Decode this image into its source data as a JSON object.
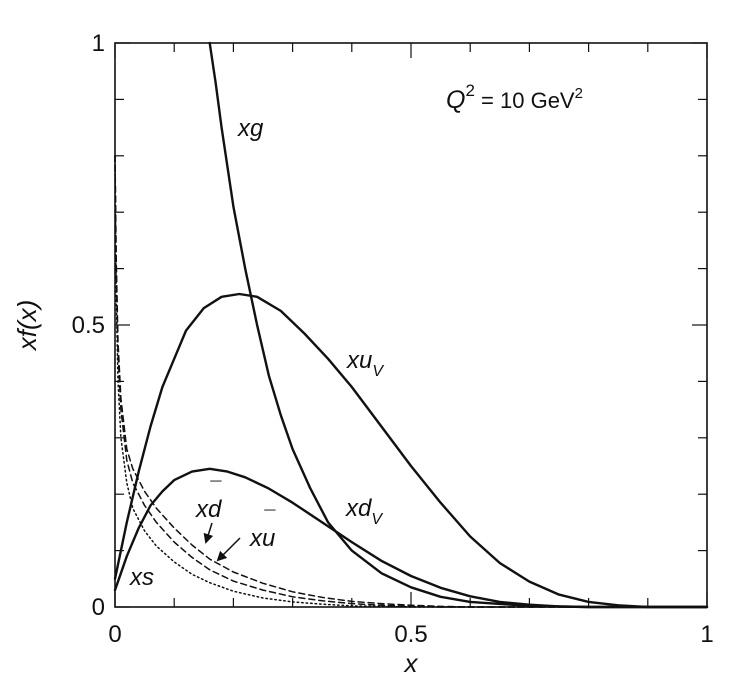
{
  "chart_data": {
    "type": "line",
    "title": "",
    "xlabel": "x",
    "ylabel": "xf(x)",
    "xlim": [
      0,
      1
    ],
    "ylim": [
      0,
      1
    ],
    "x_ticks": [
      "0",
      "0.5",
      "1"
    ],
    "y_ticks": [
      "0",
      "0.5",
      "1"
    ],
    "grid": false,
    "annotation": {
      "q_symbol": "Q",
      "q_exponent": "2",
      "q_text": " = 10 GeV",
      "unit_exponent": "2"
    },
    "series": [
      {
        "name": "xg",
        "label_base": "xg",
        "label_sub": "",
        "label_bar": "",
        "style": "solid",
        "points": [
          [
            0.16,
            1.0
          ],
          [
            0.17,
            0.93
          ],
          [
            0.18,
            0.85
          ],
          [
            0.19,
            0.78
          ],
          [
            0.2,
            0.71
          ],
          [
            0.22,
            0.6
          ],
          [
            0.24,
            0.5
          ],
          [
            0.26,
            0.41
          ],
          [
            0.28,
            0.34
          ],
          [
            0.3,
            0.28
          ],
          [
            0.33,
            0.21
          ],
          [
            0.36,
            0.15
          ],
          [
            0.4,
            0.1
          ],
          [
            0.45,
            0.06
          ],
          [
            0.5,
            0.035
          ],
          [
            0.55,
            0.018
          ],
          [
            0.6,
            0.009
          ],
          [
            0.7,
            0.002
          ],
          [
            0.8,
            0.0
          ],
          [
            0.9,
            0.0
          ],
          [
            1.0,
            0.0
          ]
        ]
      },
      {
        "name": "xu_V",
        "label_base": "xu",
        "label_sub": "V",
        "label_bar": "",
        "style": "solid",
        "points": [
          [
            0.0,
            0.05
          ],
          [
            0.01,
            0.1
          ],
          [
            0.02,
            0.15
          ],
          [
            0.04,
            0.24
          ],
          [
            0.06,
            0.32
          ],
          [
            0.08,
            0.39
          ],
          [
            0.1,
            0.44
          ],
          [
            0.12,
            0.49
          ],
          [
            0.15,
            0.53
          ],
          [
            0.18,
            0.55
          ],
          [
            0.21,
            0.555
          ],
          [
            0.24,
            0.55
          ],
          [
            0.28,
            0.525
          ],
          [
            0.32,
            0.485
          ],
          [
            0.36,
            0.44
          ],
          [
            0.4,
            0.39
          ],
          [
            0.45,
            0.32
          ],
          [
            0.5,
            0.25
          ],
          [
            0.55,
            0.185
          ],
          [
            0.6,
            0.125
          ],
          [
            0.65,
            0.078
          ],
          [
            0.7,
            0.045
          ],
          [
            0.75,
            0.022
          ],
          [
            0.8,
            0.009
          ],
          [
            0.85,
            0.003
          ],
          [
            0.9,
            0.0
          ],
          [
            1.0,
            0.0
          ]
        ]
      },
      {
        "name": "xd_V",
        "label_base": "xd",
        "label_sub": "V",
        "label_bar": "",
        "style": "solid",
        "points": [
          [
            0.0,
            0.03
          ],
          [
            0.01,
            0.06
          ],
          [
            0.02,
            0.09
          ],
          [
            0.04,
            0.14
          ],
          [
            0.06,
            0.18
          ],
          [
            0.08,
            0.205
          ],
          [
            0.1,
            0.225
          ],
          [
            0.13,
            0.24
          ],
          [
            0.16,
            0.245
          ],
          [
            0.19,
            0.24
          ],
          [
            0.22,
            0.23
          ],
          [
            0.26,
            0.21
          ],
          [
            0.3,
            0.185
          ],
          [
            0.35,
            0.15
          ],
          [
            0.4,
            0.115
          ],
          [
            0.45,
            0.082
          ],
          [
            0.5,
            0.055
          ],
          [
            0.55,
            0.034
          ],
          [
            0.6,
            0.019
          ],
          [
            0.65,
            0.009
          ],
          [
            0.7,
            0.004
          ],
          [
            0.75,
            0.001
          ],
          [
            0.8,
            0.0
          ],
          [
            1.0,
            0.0
          ]
        ]
      },
      {
        "name": "xd-bar",
        "label_base": "xd",
        "label_sub": "",
        "label_bar": "d",
        "style": "dashed",
        "points": [
          [
            0.0,
            0.8
          ],
          [
            0.002,
            0.62
          ],
          [
            0.005,
            0.47
          ],
          [
            0.01,
            0.37
          ],
          [
            0.02,
            0.28
          ],
          [
            0.03,
            0.245
          ],
          [
            0.05,
            0.205
          ],
          [
            0.07,
            0.175
          ],
          [
            0.1,
            0.14
          ],
          [
            0.13,
            0.11
          ],
          [
            0.16,
            0.085
          ],
          [
            0.2,
            0.062
          ],
          [
            0.25,
            0.042
          ],
          [
            0.3,
            0.027
          ],
          [
            0.35,
            0.017
          ],
          [
            0.4,
            0.01
          ],
          [
            0.45,
            0.006
          ],
          [
            0.5,
            0.003
          ],
          [
            0.55,
            0.001
          ],
          [
            0.6,
            0.0
          ],
          [
            1.0,
            0.0
          ]
        ]
      },
      {
        "name": "xu-bar",
        "label_base": "xu",
        "label_sub": "",
        "label_bar": "u",
        "style": "dashed",
        "points": [
          [
            0.0,
            0.8
          ],
          [
            0.002,
            0.6
          ],
          [
            0.005,
            0.45
          ],
          [
            0.01,
            0.35
          ],
          [
            0.02,
            0.26
          ],
          [
            0.03,
            0.22
          ],
          [
            0.05,
            0.18
          ],
          [
            0.07,
            0.15
          ],
          [
            0.1,
            0.115
          ],
          [
            0.13,
            0.088
          ],
          [
            0.16,
            0.066
          ],
          [
            0.2,
            0.046
          ],
          [
            0.25,
            0.03
          ],
          [
            0.3,
            0.018
          ],
          [
            0.35,
            0.011
          ],
          [
            0.4,
            0.006
          ],
          [
            0.45,
            0.003
          ],
          [
            0.5,
            0.001
          ],
          [
            0.55,
            0.0
          ],
          [
            1.0,
            0.0
          ]
        ]
      },
      {
        "name": "xs",
        "label_base": "xs",
        "label_sub": "",
        "label_bar": "",
        "style": "dotted",
        "points": [
          [
            0.0,
            0.8
          ],
          [
            0.002,
            0.55
          ],
          [
            0.005,
            0.4
          ],
          [
            0.01,
            0.3
          ],
          [
            0.02,
            0.22
          ],
          [
            0.03,
            0.175
          ],
          [
            0.05,
            0.135
          ],
          [
            0.07,
            0.108
          ],
          [
            0.1,
            0.08
          ],
          [
            0.13,
            0.058
          ],
          [
            0.16,
            0.043
          ],
          [
            0.2,
            0.028
          ],
          [
            0.25,
            0.016
          ],
          [
            0.3,
            0.009
          ],
          [
            0.35,
            0.005
          ],
          [
            0.4,
            0.002
          ],
          [
            0.5,
            0.0
          ],
          [
            1.0,
            0.0
          ]
        ]
      }
    ]
  }
}
